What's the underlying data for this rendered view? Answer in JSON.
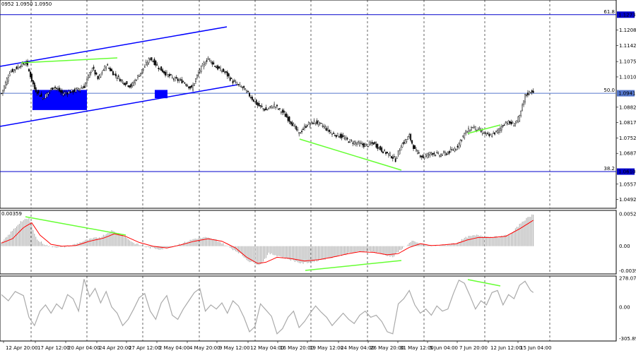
{
  "header": {
    "ohlc_text": "0952 1.0950 1.0950",
    "macd_value_text": "0.00359",
    "cci_value_text": ""
  },
  "chart_data": [
    {
      "type": "candlestick",
      "name": "price",
      "x_tick_labels": [
        "12 Apr 20:00",
        "17 Apr 12:00",
        "20 Apr 04:00",
        "24 Apr 20:00",
        "27 Apr 12:00",
        "2 May 04:00",
        "4 May 20:00",
        "9 May 12:00",
        "12 May 04:00",
        "16 May 20:00",
        "19 May 12:00",
        "24 May 04:00",
        "26 May 20:00",
        "31 May 12:00",
        "5 Jun 04:00",
        "7 Jun 20:00",
        "12 Jun 12:00",
        "15 Jun 04:00"
      ],
      "y_tick_labels": [
        "1.1208",
        "1.1142",
        "1.1075",
        "1.1010",
        "1.0882",
        "1.0817",
        "1.0752",
        "1.0687",
        "1.0557",
        "1.0492"
      ],
      "ylim": [
        1.0455,
        1.1335
      ],
      "fib_levels": [
        {
          "label": "61.8",
          "price": 1.1273,
          "price_label": "1.1273",
          "color": "#0000cc"
        },
        {
          "label": "50.0",
          "price": 1.0941,
          "price_label": "1.0941",
          "color": "#5577cc"
        },
        {
          "label": "38.2",
          "price": 1.061,
          "price_label": "1.0610",
          "color": "#0000cc"
        }
      ],
      "last_price": 1.095,
      "up_color": "#ffffff",
      "down_color": "#000000",
      "close_path": [
        [
          0,
          1.094
        ],
        [
          6,
          1.103
        ],
        [
          14,
          1.106
        ],
        [
          18,
          1.107
        ],
        [
          24,
          1.096
        ],
        [
          30,
          1.092
        ],
        [
          38,
          1.097
        ],
        [
          44,
          1.094
        ],
        [
          52,
          1.095
        ],
        [
          60,
          1.097
        ],
        [
          66,
          1.105
        ],
        [
          70,
          1.1
        ],
        [
          76,
          1.106
        ],
        [
          82,
          1.102
        ],
        [
          88,
          1.099
        ],
        [
          94,
          1.097
        ],
        [
          100,
          1.102
        ],
        [
          108,
          1.109
        ],
        [
          114,
          1.105
        ],
        [
          120,
          1.102
        ],
        [
          126,
          1.1
        ],
        [
          132,
          1.099
        ],
        [
          138,
          1.096
        ],
        [
          144,
          1.104
        ],
        [
          150,
          1.109
        ],
        [
          156,
          1.105
        ],
        [
          162,
          1.103
        ],
        [
          168,
          1.099
        ],
        [
          176,
          1.096
        ],
        [
          186,
          1.089
        ],
        [
          192,
          1.087
        ],
        [
          198,
          1.089
        ],
        [
          204,
          1.086
        ],
        [
          210,
          1.082
        ],
        [
          216,
          1.077
        ],
        [
          222,
          1.081
        ],
        [
          228,
          1.082
        ],
        [
          234,
          1.08
        ],
        [
          240,
          1.077
        ],
        [
          246,
          1.076
        ],
        [
          252,
          1.074
        ],
        [
          258,
          1.073
        ],
        [
          264,
          1.072
        ],
        [
          270,
          1.073
        ],
        [
          276,
          1.07
        ],
        [
          282,
          1.068
        ],
        [
          286,
          1.066
        ],
        [
          290,
          1.072
        ],
        [
          296,
          1.076
        ],
        [
          300,
          1.07
        ],
        [
          306,
          1.067
        ],
        [
          312,
          1.069
        ],
        [
          318,
          1.068
        ],
        [
          324,
          1.069
        ],
        [
          330,
          1.071
        ],
        [
          336,
          1.077
        ],
        [
          342,
          1.08
        ],
        [
          348,
          1.078
        ],
        [
          354,
          1.076
        ],
        [
          360,
          1.078
        ],
        [
          366,
          1.082
        ],
        [
          372,
          1.081
        ],
        [
          376,
          1.084
        ],
        [
          380,
          1.093
        ],
        [
          384,
          1.095
        ],
        [
          386,
          1.095
        ]
      ],
      "seed": 7
    },
    {
      "type": "histogram",
      "name": "macd",
      "y_tick_labels": [
        "0.00522",
        "0.00",
        "-0.00397"
      ],
      "ylim": [
        -0.0045,
        0.0058
      ],
      "bar_color": "#aaaaaa",
      "signal_color": "#ff0000",
      "histogram_path": [
        [
          0,
          0.0005
        ],
        [
          6,
          0.002
        ],
        [
          14,
          0.004
        ],
        [
          20,
          0.0045
        ],
        [
          26,
          0.001
        ],
        [
          34,
          0.0
        ],
        [
          44,
          -0.0002
        ],
        [
          52,
          0.0002
        ],
        [
          62,
          0.001
        ],
        [
          72,
          0.0015
        ],
        [
          80,
          0.0025
        ],
        [
          88,
          0.0018
        ],
        [
          96,
          0.0005
        ],
        [
          106,
          -0.0002
        ],
        [
          116,
          -0.0005
        ],
        [
          124,
          0.0
        ],
        [
          132,
          0.0005
        ],
        [
          140,
          0.0012
        ],
        [
          148,
          0.0014
        ],
        [
          156,
          0.001
        ],
        [
          164,
          0.0
        ],
        [
          172,
          -0.001
        ],
        [
          180,
          -0.0025
        ],
        [
          188,
          -0.003
        ],
        [
          194,
          -0.0012
        ],
        [
          200,
          -0.0015
        ],
        [
          210,
          -0.0022
        ],
        [
          218,
          -0.0028
        ],
        [
          226,
          -0.0025
        ],
        [
          236,
          -0.002
        ],
        [
          246,
          -0.0015
        ],
        [
          256,
          -0.001
        ],
        [
          266,
          -0.0008
        ],
        [
          276,
          -0.0012
        ],
        [
          284,
          -0.0018
        ],
        [
          290,
          -0.0005
        ],
        [
          298,
          0.0008
        ],
        [
          306,
          0.0002
        ],
        [
          314,
          0.0
        ],
        [
          322,
          0.0002
        ],
        [
          330,
          0.0005
        ],
        [
          338,
          0.0015
        ],
        [
          346,
          0.0018
        ],
        [
          354,
          0.0015
        ],
        [
          362,
          0.0015
        ],
        [
          370,
          0.002
        ],
        [
          378,
          0.004
        ],
        [
          386,
          0.0052
        ]
      ],
      "signal_path": [
        [
          0,
          0.0005
        ],
        [
          8,
          0.0012
        ],
        [
          16,
          0.003
        ],
        [
          22,
          0.0038
        ],
        [
          28,
          0.0018
        ],
        [
          36,
          0.0003
        ],
        [
          44,
          0.0
        ],
        [
          54,
          0.0001
        ],
        [
          64,
          0.0008
        ],
        [
          74,
          0.0013
        ],
        [
          82,
          0.002
        ],
        [
          90,
          0.0016
        ],
        [
          100,
          0.0006
        ],
        [
          110,
          0.0
        ],
        [
          120,
          -0.0003
        ],
        [
          130,
          0.0002
        ],
        [
          140,
          0.0008
        ],
        [
          150,
          0.0012
        ],
        [
          160,
          0.0008
        ],
        [
          170,
          -0.0003
        ],
        [
          178,
          -0.0018
        ],
        [
          186,
          -0.0028
        ],
        [
          192,
          -0.0026
        ],
        [
          200,
          -0.0018
        ],
        [
          210,
          -0.002
        ],
        [
          220,
          -0.0024
        ],
        [
          230,
          -0.0022
        ],
        [
          240,
          -0.0018
        ],
        [
          250,
          -0.0013
        ],
        [
          260,
          -0.0009
        ],
        [
          270,
          -0.001
        ],
        [
          280,
          -0.0014
        ],
        [
          288,
          -0.0012
        ],
        [
          296,
          -0.0002
        ],
        [
          304,
          0.0004
        ],
        [
          312,
          0.0001
        ],
        [
          320,
          0.0002
        ],
        [
          330,
          0.0004
        ],
        [
          338,
          0.001
        ],
        [
          346,
          0.0014
        ],
        [
          356,
          0.0014
        ],
        [
          366,
          0.0016
        ],
        [
          376,
          0.0028
        ],
        [
          386,
          0.0042
        ]
      ]
    },
    {
      "type": "line",
      "name": "cci",
      "y_tick_labels": [
        "278.0761",
        "0.00",
        "-305.892"
      ],
      "ylim": [
        -330,
        300
      ],
      "line_color": "#aaaaaa",
      "values_path": [
        [
          0,
          120
        ],
        [
          5,
          60
        ],
        [
          10,
          150
        ],
        [
          16,
          110
        ],
        [
          20,
          -100
        ],
        [
          24,
          -180
        ],
        [
          28,
          -40
        ],
        [
          32,
          20
        ],
        [
          36,
          -60
        ],
        [
          40,
          30
        ],
        [
          44,
          -20
        ],
        [
          48,
          120
        ],
        [
          52,
          80
        ],
        [
          56,
          -40
        ],
        [
          60,
          270
        ],
        [
          64,
          100
        ],
        [
          68,
          180
        ],
        [
          72,
          40
        ],
        [
          76,
          150
        ],
        [
          80,
          0
        ],
        [
          84,
          -60
        ],
        [
          88,
          -180
        ],
        [
          92,
          -120
        ],
        [
          96,
          -20
        ],
        [
          100,
          90
        ],
        [
          104,
          130
        ],
        [
          108,
          -40
        ],
        [
          112,
          -120
        ],
        [
          116,
          40
        ],
        [
          120,
          110
        ],
        [
          124,
          -80
        ],
        [
          128,
          -120
        ],
        [
          132,
          -20
        ],
        [
          136,
          60
        ],
        [
          140,
          140
        ],
        [
          144,
          180
        ],
        [
          148,
          -40
        ],
        [
          152,
          20
        ],
        [
          156,
          -20
        ],
        [
          160,
          40
        ],
        [
          164,
          -60
        ],
        [
          168,
          60
        ],
        [
          172,
          10
        ],
        [
          176,
          -100
        ],
        [
          180,
          -240
        ],
        [
          184,
          -190
        ],
        [
          188,
          30
        ],
        [
          192,
          -30
        ],
        [
          196,
          -90
        ],
        [
          200,
          -260
        ],
        [
          204,
          -210
        ],
        [
          208,
          -100
        ],
        [
          212,
          -40
        ],
        [
          216,
          -200
        ],
        [
          220,
          -140
        ],
        [
          224,
          -60
        ],
        [
          228,
          10
        ],
        [
          232,
          -50
        ],
        [
          236,
          -100
        ],
        [
          240,
          -180
        ],
        [
          244,
          -120
        ],
        [
          248,
          -60
        ],
        [
          252,
          -120
        ],
        [
          256,
          -160
        ],
        [
          260,
          -80
        ],
        [
          264,
          -40
        ],
        [
          268,
          -100
        ],
        [
          272,
          -80
        ],
        [
          276,
          -140
        ],
        [
          280,
          -240
        ],
        [
          284,
          -260
        ],
        [
          288,
          30
        ],
        [
          292,
          80
        ],
        [
          296,
          160
        ],
        [
          300,
          20
        ],
        [
          304,
          -60
        ],
        [
          308,
          -20
        ],
        [
          312,
          -80
        ],
        [
          316,
          10
        ],
        [
          320,
          -40
        ],
        [
          324,
          -20
        ],
        [
          328,
          130
        ],
        [
          332,
          260
        ],
        [
          336,
          230
        ],
        [
          340,
          110
        ],
        [
          344,
          -20
        ],
        [
          348,
          60
        ],
        [
          352,
          20
        ],
        [
          356,
          140
        ],
        [
          360,
          160
        ],
        [
          364,
          20
        ],
        [
          368,
          120
        ],
        [
          372,
          80
        ],
        [
          376,
          210
        ],
        [
          380,
          250
        ],
        [
          384,
          160
        ],
        [
          386,
          140
        ]
      ]
    }
  ],
  "drawings": {
    "channel_color": "#0000ff",
    "divergence_color": "#66ff33",
    "zone_color": "#0000ff"
  }
}
